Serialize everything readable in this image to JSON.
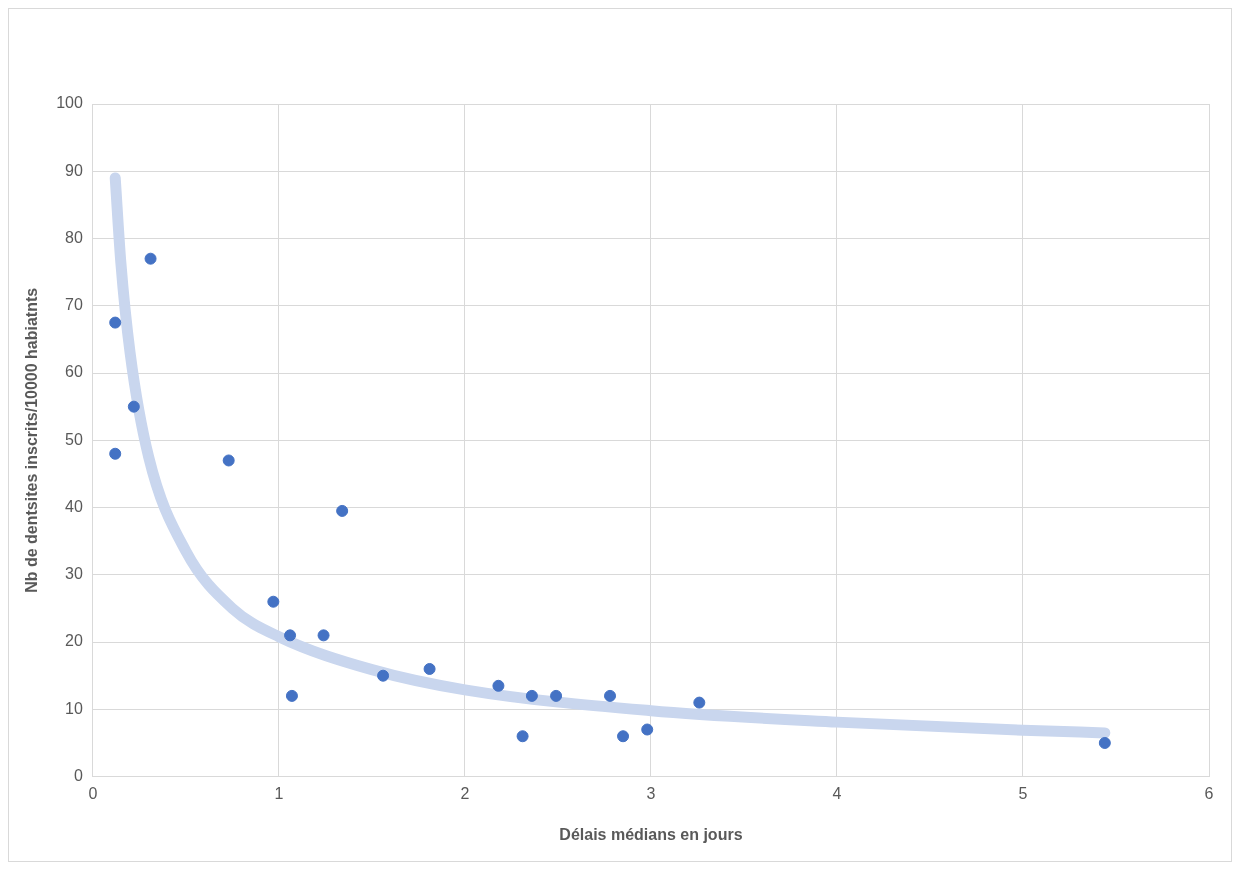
{
  "chart_data": {
    "type": "scatter",
    "xlabel": "Délais médians en jours",
    "ylabel": "Nb de dentsites inscrits/10000 habiatnts",
    "xlim": [
      0,
      6
    ],
    "xticks": [
      0,
      1,
      2,
      3,
      4,
      5,
      6
    ],
    "ylim": [
      0,
      100
    ],
    "yticks": [
      0,
      10,
      20,
      30,
      40,
      50,
      60,
      70,
      80,
      90,
      100
    ],
    "grid": true,
    "legend": false,
    "series": [
      {
        "type": "line",
        "marker": "none",
        "color": "#c9d6ee",
        "x": [
          0.12,
          0.15,
          0.2,
          0.3,
          0.5,
          0.75,
          1,
          1.5,
          2,
          3,
          4,
          5,
          5.44
        ],
        "values": [
          89,
          76.5,
          63,
          47.5,
          33.5,
          25,
          20.8,
          15.9,
          12.9,
          9.8,
          8.1,
          6.9,
          6.5
        ]
      },
      {
        "marker": "circle",
        "color": "#4472c4",
        "x": [
          0.12,
          0.12,
          0.22,
          0.31,
          0.73,
          0.97,
          1.06,
          1.07,
          1.24,
          1.34,
          1.56,
          1.81,
          2.18,
          2.31,
          2.36,
          2.49,
          2.78,
          2.85,
          2.98,
          3.26,
          5.44
        ],
        "values": [
          67.5,
          48,
          55,
          77,
          47,
          26,
          21,
          12,
          21,
          39.5,
          15,
          16,
          13.5,
          6,
          12,
          12,
          12,
          6,
          7,
          11,
          5
        ]
      }
    ]
  }
}
